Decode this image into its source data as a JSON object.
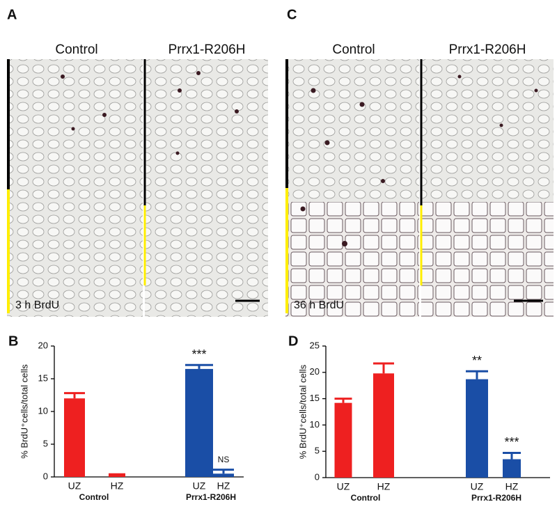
{
  "panels": [
    {
      "letter": "A",
      "left_title": "Control",
      "right_title": "Prrx1-R206H",
      "caption": "3 h BrdU"
    },
    {
      "letter": "C",
      "left_title": "Control",
      "right_title": "Prrx1-R206H",
      "caption": "36 h BrdU"
    }
  ],
  "chart_data": [
    {
      "type": "bar",
      "panel_label": "B",
      "y_label": "% BrdU⁺cells/total cells",
      "categories": [
        "UZ",
        "HZ",
        "UZ",
        "HZ"
      ],
      "groups": [
        "Control",
        "Prrx1-R206H"
      ],
      "values": [
        12,
        0.3,
        16.5,
        0.5
      ],
      "errors": [
        0.8,
        0.1,
        0.6,
        0.6
      ],
      "colors": [
        "#ee2020",
        "#ee2020",
        "#1a4ea6",
        "#1a4ea6"
      ],
      "annotations": [
        null,
        null,
        "***",
        "NS"
      ],
      "ylim": [
        0,
        20
      ],
      "yticks": [
        0,
        5,
        10,
        15,
        20
      ]
    },
    {
      "type": "bar",
      "panel_label": "D",
      "y_label": "% BrdU⁺cells/total cells",
      "categories": [
        "UZ",
        "HZ",
        "UZ",
        "HZ"
      ],
      "groups": [
        "Control",
        "Prrx1-R206H"
      ],
      "values": [
        14.2,
        19.8,
        18.7,
        3.5
      ],
      "errors": [
        0.8,
        1.9,
        1.5,
        1.2
      ],
      "colors": [
        "#ee2020",
        "#ee2020",
        "#1a4ea6",
        "#1a4ea6"
      ],
      "annotations": [
        null,
        null,
        "**",
        "***"
      ],
      "ylim": [
        0,
        25
      ],
      "yticks": [
        0,
        5,
        10,
        15,
        20,
        25
      ]
    }
  ]
}
